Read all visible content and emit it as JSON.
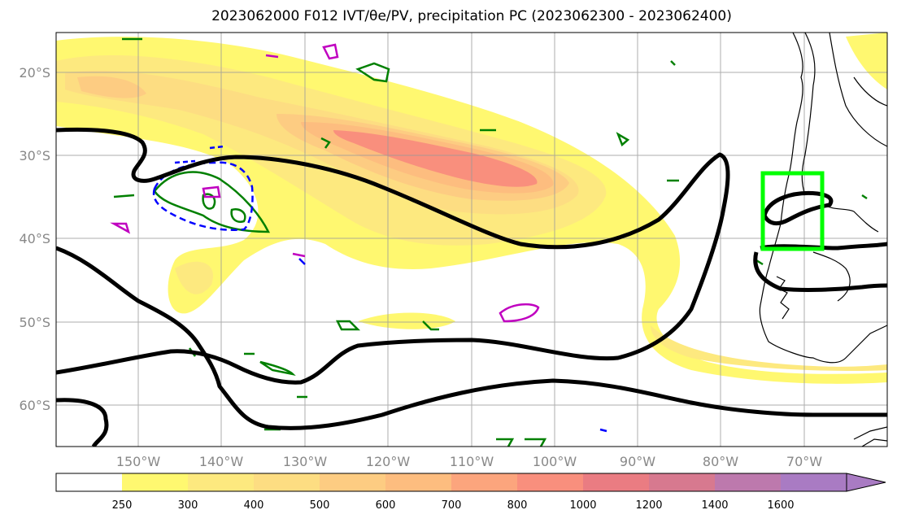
{
  "title": "2023062000 F012 IVT/θe/PV, precipitation PC (2023062300 - 2023062400)",
  "map": {
    "lat_labels": [
      "20°S",
      "30°S",
      "40°S",
      "50°S",
      "60°S"
    ],
    "lon_labels": [
      "150°W",
      "140°W",
      "130°W",
      "120°W",
      "110°W",
      "100°W",
      "90°W",
      "80°W",
      "70°W"
    ],
    "grid": true
  },
  "colorbar": {
    "levels": [
      "250",
      "300",
      "400",
      "500",
      "600",
      "700",
      "800",
      "1000",
      "1200",
      "1400",
      "1600"
    ],
    "colors": [
      "#ffffff",
      "#fff870",
      "#fde97f",
      "#fddd82",
      "#fdcc82",
      "#fdbd7f",
      "#fca57d",
      "#f98f7d",
      "#ea7c82",
      "#d7798f",
      "#bd79ad",
      "#a97bc3"
    ]
  },
  "colors": {
    "ivt_contour": "#000000",
    "theta_e": "#008000",
    "pv_negative": "#0000ff",
    "pv_positive": "#c000c0",
    "highlight_box": "#00ff00"
  }
}
